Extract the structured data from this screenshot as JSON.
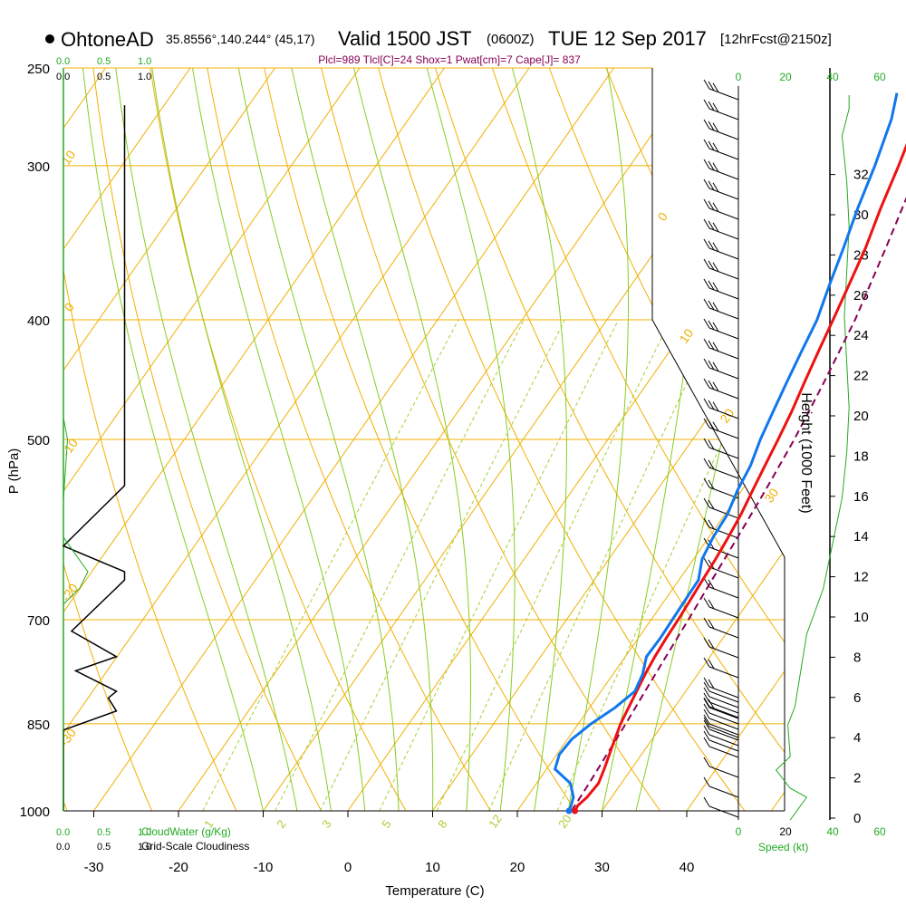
{
  "header": {
    "station": "OhtoneAD",
    "coords": "35.8556°,140.244° (45,17)",
    "valid_prefix": "Valid 1500 JST",
    "valid_zulu": "(0600Z)",
    "valid_date": "TUE 12 Sep 2017",
    "forecast": "[12hrFcst@2150z]",
    "parcel_info": "Plcl=989 Tlcl[C]=24 Shox=1 Pwat[cm]=7 Cape[J]= 837"
  },
  "colors": {
    "temperature": "#ee1111",
    "dewpoint": "#1177ee",
    "parcel": "#880055",
    "isobar_isotherm": "#f0b000",
    "dry_adiabat": "#f0b000",
    "moist_adiabat": "#88cc22",
    "mixing_ratio": "#aacc33",
    "green_label": "#22aa22",
    "cloudiness": "#000000",
    "cloud_water": "#22aa22"
  },
  "chart_data": {
    "type": "line",
    "title": "Valid 1500 JST (0600Z) TUE 12 Sep 2017",
    "xlabel": "Temperature (C)",
    "ylabel": "P (hPa)",
    "y2label": "Height (1000 Feet)",
    "x_ticks": [
      "-30",
      "-20",
      "-10",
      "0",
      "10",
      "20",
      "30",
      "40"
    ],
    "x_tick_values": [
      -30,
      -20,
      -10,
      0,
      10,
      20,
      30,
      40
    ],
    "xlim": [
      -34,
      46
    ],
    "y_scale": "log",
    "ylim": [
      1000,
      250
    ],
    "y_ticks": [
      "250",
      "300",
      "400",
      "500",
      "700",
      "850",
      "1000"
    ],
    "y_tick_values": [
      250,
      300,
      400,
      500,
      700,
      850,
      1000
    ],
    "height_ticks": [
      "0",
      "2",
      "4",
      "6",
      "8",
      "10",
      "12",
      "14",
      "16",
      "18",
      "20",
      "22",
      "24",
      "26",
      "28",
      "30",
      "32"
    ],
    "height_tick_values": [
      0,
      2,
      4,
      6,
      8,
      10,
      12,
      14,
      16,
      18,
      20,
      22,
      24,
      26,
      28,
      30,
      32
    ],
    "series": [
      {
        "name": "Temperature",
        "pressure": [
          1000,
          990,
          975,
          950,
          925,
          900,
          875,
          850,
          825,
          800,
          775,
          750,
          725,
          700,
          675,
          650,
          625,
          600,
          575,
          550,
          525,
          500,
          475,
          450,
          425,
          400,
          375,
          350,
          325,
          300,
          275,
          262
        ],
        "temperature": [
          26.8,
          26.7,
          27.1,
          27.3,
          26.8,
          26.2,
          25.6,
          25.0,
          24.6,
          24.2,
          23.8,
          23.5,
          23.3,
          23.2,
          23.0,
          22.8,
          22.6,
          22.3,
          21.9,
          21.3,
          20.7,
          20.1,
          19.4,
          18.5,
          17.6,
          16.7,
          15.7,
          14.6,
          13.1,
          11.7,
          10.0,
          8.5
        ]
      },
      {
        "name": "Dew Point",
        "pressure": [
          1000,
          990,
          975,
          950,
          925,
          900,
          875,
          850,
          825,
          800,
          775,
          750,
          725,
          700,
          675,
          650,
          625,
          600,
          575,
          550,
          525,
          500,
          475,
          450,
          425,
          400,
          375,
          350,
          325,
          300,
          275,
          262
        ],
        "temperature": [
          26.1,
          25.9,
          25.5,
          24.0,
          21.0,
          20.3,
          20.5,
          21.5,
          23.0,
          24.0,
          23.5,
          22.5,
          22.6,
          22.5,
          22.4,
          22.3,
          21.0,
          20.5,
          20.3,
          19.5,
          19.0,
          18.0,
          17.2,
          16.4,
          15.6,
          14.8,
          13.4,
          12.0,
          10.4,
          8.9,
          7.0,
          5.5
        ]
      },
      {
        "name": "Parcel",
        "pressure": [
          1000,
          950,
          900,
          850,
          800,
          750,
          700,
          650,
          600,
          550,
          500,
          450,
          400,
          350,
          300,
          262
        ],
        "temperature": [
          26.4,
          26.2,
          25.9,
          25.6,
          25.2,
          24.8,
          24.4,
          23.9,
          23.4,
          22.8,
          22.0,
          20.8,
          19.3,
          17.0,
          14.2,
          11.7
        ]
      }
    ],
    "cloud_water_axis_ticks": [
      "0.0",
      "0.5",
      "1.0"
    ],
    "cloudiness_axis_ticks": [
      "0.0",
      "0.5",
      "1.0"
    ],
    "cloud_water_label": "CloudWater (g/Kg)",
    "cloudiness_label": "Grid-Scale Cloudiness",
    "cloudiness": {
      "pressure": [
        268,
        545,
        610,
        640,
        650,
        715,
        750,
        770,
        800,
        810,
        830,
        860,
        1000
      ],
      "value": [
        0.75,
        0.75,
        0.0,
        0.75,
        0.75,
        0.1,
        0.65,
        0.15,
        0.65,
        0.55,
        0.65,
        0.0,
        0.0
      ]
    },
    "cloud_water": {
      "pressure": [
        250,
        480,
        500,
        560,
        600,
        620,
        640,
        660,
        680,
        1000
      ],
      "value": [
        0.0,
        0.0,
        0.05,
        0.0,
        0.0,
        0.15,
        0.3,
        0.2,
        0.0,
        0.0
      ]
    },
    "dry_adiabat_labels": [
      "10",
      "0",
      "-10",
      "-20",
      "-30",
      "0",
      "10",
      "20",
      "30"
    ],
    "moist_adiabat_labels": [
      "1",
      "2",
      "3",
      "5",
      "8",
      "12",
      "20"
    ],
    "wind_speed_ticks": [
      "0",
      "20",
      "40",
      "60"
    ],
    "wind_speed_label": "Speed (kt)"
  }
}
